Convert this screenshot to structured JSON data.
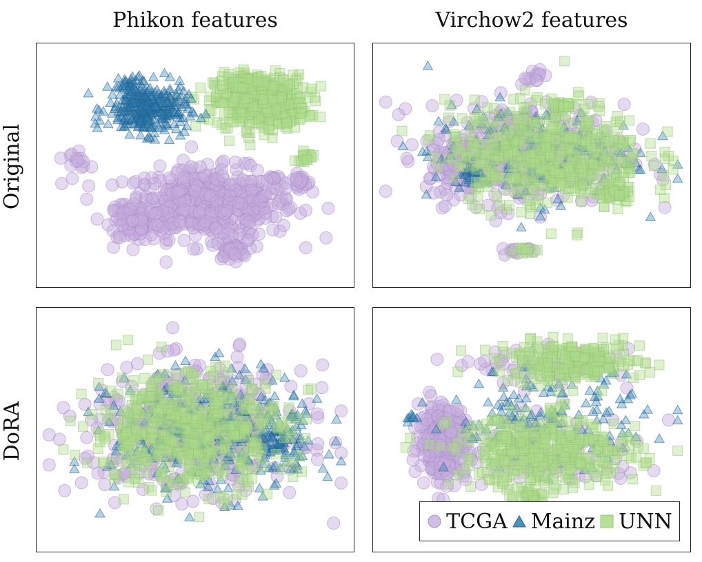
{
  "colors": {
    "TCGA": "#c6aede",
    "Mainz": "#2e7fb4",
    "UNN": "#b0dc8c"
  },
  "columns": [
    "Phikon features",
    "Virchow2 features"
  ],
  "rows": [
    "Original",
    "DoRA"
  ],
  "legend": [
    {
      "label": "TCGA",
      "marker": "circle"
    },
    {
      "label": "Mainz",
      "marker": "triangle"
    },
    {
      "label": "UNN",
      "marker": "square"
    }
  ],
  "chart_data": [
    {
      "type": "scatter",
      "row": "Original",
      "column": "Phikon features",
      "xlim": [
        0,
        1
      ],
      "ylim": [
        0,
        1
      ],
      "series": [
        {
          "name": "TCGA",
          "clusters": [
            [
              0.55,
              0.33,
              0.26,
              0.14,
              520
            ],
            [
              0.1,
              0.53,
              0.04,
              0.04,
              14
            ],
            [
              0.62,
              0.12,
              0.05,
              0.04,
              40
            ],
            [
              0.85,
              0.42,
              0.04,
              0.03,
              20
            ],
            [
              0.3,
              0.25,
              0.08,
              0.08,
              80
            ]
          ]
        },
        {
          "name": "Mainz",
          "clusters": [
            [
              0.34,
              0.75,
              0.12,
              0.1,
              320
            ],
            [
              0.27,
              0.85,
              0.05,
              0.04,
              30
            ]
          ]
        },
        {
          "name": "UNN",
          "clusters": [
            [
              0.72,
              0.78,
              0.14,
              0.11,
              420
            ],
            [
              0.87,
              0.54,
              0.03,
              0.02,
              16
            ],
            [
              0.67,
              0.86,
              0.06,
              0.05,
              60
            ]
          ]
        }
      ]
    },
    {
      "type": "scatter",
      "row": "Original",
      "column": "Virchow2 features",
      "xlim": [
        0,
        1
      ],
      "ylim": [
        0,
        1
      ],
      "series": [
        {
          "name": "TCGA",
          "clusters": [
            [
              0.48,
              0.55,
              0.3,
              0.2,
              420
            ],
            [
              0.5,
              0.9,
              0.04,
              0.03,
              14
            ],
            [
              0.45,
              0.12,
              0.04,
              0.02,
              12
            ],
            [
              0.25,
              0.5,
              0.06,
              0.08,
              60
            ]
          ]
        },
        {
          "name": "Mainz",
          "clusters": [
            [
              0.5,
              0.55,
              0.32,
              0.2,
              180
            ],
            [
              0.3,
              0.45,
              0.05,
              0.05,
              30
            ]
          ]
        },
        {
          "name": "UNN",
          "clusters": [
            [
              0.55,
              0.55,
              0.3,
              0.21,
              480
            ],
            [
              0.6,
              0.76,
              0.03,
              0.03,
              20
            ],
            [
              0.48,
              0.12,
              0.03,
              0.02,
              10
            ],
            [
              0.78,
              0.38,
              0.05,
              0.05,
              40
            ]
          ]
        }
      ]
    },
    {
      "type": "scatter",
      "row": "DoRA",
      "column": "Phikon features",
      "xlim": [
        0,
        1
      ],
      "ylim": [
        0,
        1
      ],
      "series": [
        {
          "name": "TCGA",
          "clusters": [
            [
              0.5,
              0.5,
              0.33,
              0.25,
              460
            ]
          ]
        },
        {
          "name": "Mainz",
          "clusters": [
            [
              0.55,
              0.48,
              0.3,
              0.24,
              340
            ],
            [
              0.8,
              0.45,
              0.07,
              0.1,
              60
            ]
          ]
        },
        {
          "name": "UNN",
          "clusters": [
            [
              0.48,
              0.5,
              0.3,
              0.24,
              500
            ]
          ]
        }
      ]
    },
    {
      "type": "scatter",
      "row": "DoRA",
      "column": "Virchow2 features",
      "xlim": [
        0,
        1
      ],
      "ylim": [
        0,
        1
      ],
      "series": [
        {
          "name": "TCGA",
          "clusters": [
            [
              0.2,
              0.45,
              0.07,
              0.14,
              280
            ],
            [
              0.55,
              0.4,
              0.3,
              0.15,
              120
            ],
            [
              0.58,
              0.78,
              0.24,
              0.07,
              60
            ]
          ]
        },
        {
          "name": "Mainz",
          "clusters": [
            [
              0.55,
              0.55,
              0.3,
              0.2,
              160
            ],
            [
              0.1,
              0.55,
              0.03,
              0.03,
              8
            ]
          ]
        },
        {
          "name": "UNN",
          "clusters": [
            [
              0.55,
              0.4,
              0.28,
              0.15,
              380
            ],
            [
              0.63,
              0.8,
              0.22,
              0.08,
              220
            ],
            [
              0.5,
              0.2,
              0.05,
              0.03,
              30
            ]
          ]
        }
      ]
    }
  ]
}
